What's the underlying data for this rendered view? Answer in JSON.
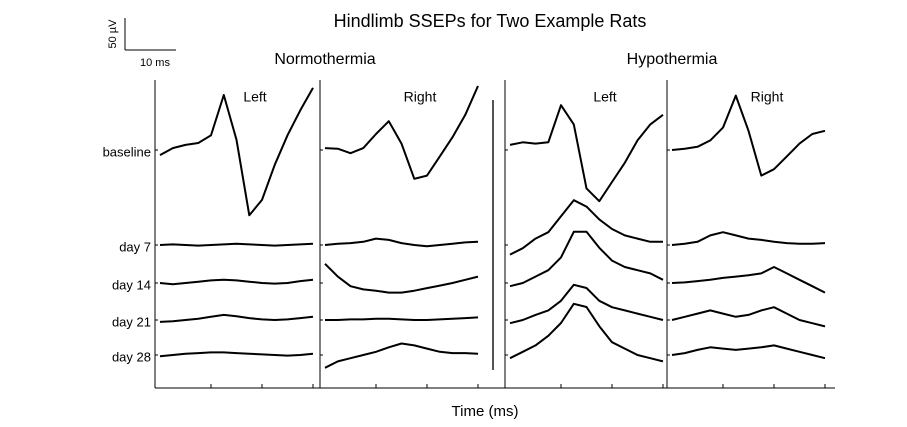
{
  "chart_data": {
    "type": "line",
    "title": "Hindlimb SSEPs for Two Example Rats",
    "xlabel": "Time (ms)",
    "scale_bar": {
      "y_value": 50,
      "y_label": "50 µV",
      "x_value": 10,
      "x_label": "10 ms"
    },
    "rows": [
      "baseline",
      "day 7",
      "day 14",
      "day 21",
      "day 28"
    ],
    "x": [
      0,
      2.5,
      5,
      7.5,
      10,
      12.5,
      15,
      17.5,
      20,
      22.5,
      25,
      27.5,
      30
    ],
    "color": "#000000",
    "groups": [
      {
        "name": "Normothermia",
        "panels": [
          {
            "name": "Left",
            "traces": [
              [
                -8,
                3,
                8,
                11,
                23,
                86,
                16,
                -102,
                -78,
                -23,
                23,
                62,
                97
              ],
              [
                0,
                1,
                0,
                -1,
                0,
                1,
                2,
                1,
                0,
                -1,
                0,
                1,
                2
              ],
              [
                0,
                -2,
                0,
                2,
                4,
                5,
                4,
                2,
                0,
                -1,
                0,
                3,
                5
              ],
              [
                -3,
                -2,
                0,
                2,
                5,
                8,
                6,
                3,
                1,
                0,
                1,
                3,
                5
              ],
              [
                -2,
                0,
                2,
                3,
                4,
                4,
                3,
                2,
                1,
                0,
                -1,
                0,
                2
              ]
            ]
          },
          {
            "name": "Right",
            "traces": [
              [
                3,
                2,
                -5,
                3,
                25,
                45,
                10,
                -45,
                -40,
                -10,
                20,
                55,
                100
              ],
              [
                0,
                2,
                3,
                5,
                10,
                8,
                3,
                0,
                -2,
                0,
                2,
                4,
                5
              ],
              [
                30,
                10,
                -5,
                -10,
                -12,
                -15,
                -15,
                -12,
                -8,
                -4,
                0,
                5,
                10
              ],
              [
                0,
                0,
                1,
                1,
                2,
                2,
                1,
                0,
                0,
                1,
                2,
                3,
                4
              ],
              [
                -20,
                -10,
                -5,
                0,
                5,
                12,
                18,
                15,
                10,
                5,
                3,
                3,
                2
              ]
            ]
          }
        ]
      },
      {
        "name": "Hypothermia",
        "panels": [
          {
            "name": "Left",
            "traces": [
              [
                8,
                12,
                10,
                12,
                70,
                40,
                -60,
                -80,
                -50,
                -20,
                15,
                40,
                55
              ],
              [
                -15,
                -5,
                10,
                20,
                45,
                70,
                60,
                40,
                25,
                15,
                10,
                5,
                5
              ],
              [
                -5,
                0,
                10,
                20,
                40,
                80,
                80,
                55,
                35,
                25,
                20,
                15,
                5
              ],
              [
                -5,
                0,
                8,
                15,
                30,
                55,
                50,
                30,
                20,
                15,
                10,
                5,
                0
              ],
              [
                -5,
                5,
                15,
                30,
                50,
                80,
                75,
                45,
                20,
                10,
                0,
                -5,
                -10
              ]
            ]
          },
          {
            "name": "Right",
            "traces": [
              [
                0,
                2,
                5,
                15,
                35,
                85,
                30,
                -40,
                -30,
                -10,
                10,
                25,
                30
              ],
              [
                0,
                2,
                5,
                15,
                20,
                15,
                10,
                8,
                5,
                3,
                2,
                2,
                3
              ],
              [
                0,
                1,
                3,
                5,
                8,
                10,
                12,
                15,
                25,
                15,
                5,
                -5,
                -15
              ],
              [
                0,
                5,
                10,
                15,
                10,
                5,
                8,
                15,
                20,
                10,
                0,
                -5,
                -10
              ],
              [
                0,
                3,
                8,
                12,
                10,
                8,
                10,
                12,
                15,
                10,
                5,
                0,
                -5
              ]
            ]
          }
        ]
      }
    ]
  }
}
